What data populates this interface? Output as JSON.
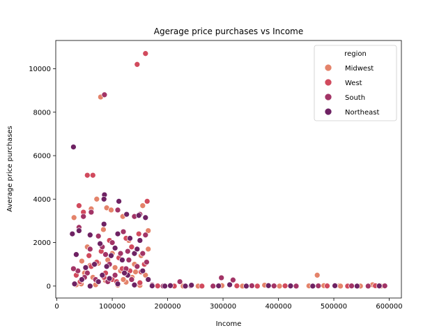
{
  "chart_data": {
    "type": "scatter",
    "title": "Agerage price purchases vs Income",
    "xlabel": "Income",
    "ylabel": "Average price purchases",
    "xlim": [
      -2000,
      622000
    ],
    "ylim": [
      -550,
      11300
    ],
    "xticks": [
      0,
      100000,
      200000,
      300000,
      400000,
      500000,
      600000
    ],
    "xtick_labels": [
      "0",
      "100000",
      "200000",
      "300000",
      "400000",
      "500000",
      "600000"
    ],
    "yticks": [
      0,
      2000,
      4000,
      6000,
      8000,
      10000
    ],
    "ytick_labels": [
      "0",
      "2000",
      "4000",
      "6000",
      "8000",
      "10000"
    ],
    "grid": false,
    "legend": {
      "title": "region",
      "placement": "top-right",
      "entries": [
        "Midwest",
        "West",
        "South",
        "Northeast"
      ]
    },
    "series": [
      {
        "name": "Midwest",
        "color": "#e4836a",
        "points": [
          [
            79000,
            8700
          ],
          [
            31000,
            3150
          ],
          [
            55000,
            1800
          ],
          [
            62000,
            3550
          ],
          [
            72000,
            4000
          ],
          [
            90000,
            3600
          ],
          [
            98000,
            3500
          ],
          [
            84000,
            2600
          ],
          [
            119000,
            3200
          ],
          [
            130000,
            2100
          ],
          [
            155000,
            3700
          ],
          [
            165000,
            2550
          ],
          [
            165000,
            1700
          ],
          [
            152000,
            1400
          ],
          [
            115000,
            700
          ],
          [
            45000,
            1150
          ],
          [
            60000,
            950
          ],
          [
            75000,
            1050
          ],
          [
            100000,
            1500
          ],
          [
            140000,
            1000
          ],
          [
            35000,
            60
          ],
          [
            44000,
            100
          ],
          [
            70000,
            60
          ],
          [
            88000,
            250
          ],
          [
            110000,
            40
          ],
          [
            125000,
            180
          ],
          [
            150000,
            30
          ],
          [
            160000,
            500
          ],
          [
            120000,
            300
          ],
          [
            65000,
            400
          ],
          [
            50000,
            600
          ],
          [
            105000,
            850
          ],
          [
            92000,
            1200
          ],
          [
            142000,
            650
          ],
          [
            136000,
            400
          ],
          [
            470000,
            500
          ],
          [
            455000,
            10
          ],
          [
            482000,
            20
          ],
          [
            510000,
            15
          ],
          [
            570000,
            60
          ],
          [
            375000,
            40
          ],
          [
            255000,
            0
          ],
          [
            298000,
            20
          ],
          [
            402000,
            0
          ],
          [
            512000,
            0
          ],
          [
            548000,
            0
          ],
          [
            585000,
            0
          ],
          [
            335000,
            0
          ],
          [
            205000,
            10
          ],
          [
            228000,
            0
          ]
        ]
      },
      {
        "name": "West",
        "color": "#d14a5d",
        "points": [
          [
            145000,
            10200
          ],
          [
            160000,
            10700
          ],
          [
            55000,
            5100
          ],
          [
            65000,
            5100
          ],
          [
            40000,
            3700
          ],
          [
            163000,
            3900
          ],
          [
            48000,
            3400
          ],
          [
            95000,
            2100
          ],
          [
            125000,
            2200
          ],
          [
            148000,
            2400
          ],
          [
            80000,
            1600
          ],
          [
            112000,
            1300
          ],
          [
            62000,
            900
          ],
          [
            35000,
            500
          ],
          [
            72000,
            1100
          ],
          [
            132000,
            700
          ],
          [
            100000,
            300
          ],
          [
            158000,
            1000
          ],
          [
            150000,
            150
          ],
          [
            85000,
            400
          ],
          [
            42000,
            200
          ],
          [
            118000,
            800
          ],
          [
            135000,
            1800
          ],
          [
            108000,
            200
          ],
          [
            58000,
            1400
          ],
          [
            88000,
            600
          ],
          [
            152000,
            650
          ],
          [
            325000,
            10
          ],
          [
            362000,
            0
          ],
          [
            412000,
            10
          ],
          [
            488000,
            5
          ],
          [
            525000,
            0
          ],
          [
            575000,
            15
          ],
          [
            262000,
            0
          ],
          [
            182000,
            5
          ],
          [
            212000,
            0
          ]
        ]
      },
      {
        "name": "South",
        "color": "#a23466",
        "points": [
          [
            86000,
            8800
          ],
          [
            48000,
            3200
          ],
          [
            62000,
            3400
          ],
          [
            110000,
            3500
          ],
          [
            140000,
            3200
          ],
          [
            120000,
            2500
          ],
          [
            150000,
            3300
          ],
          [
            100000,
            2000
          ],
          [
            60000,
            1700
          ],
          [
            128000,
            1600
          ],
          [
            160000,
            2350
          ],
          [
            88000,
            1450
          ],
          [
            40000,
            2700
          ],
          [
            75000,
            2300
          ],
          [
            130000,
            1200
          ],
          [
            95000,
            1000
          ],
          [
            55000,
            600
          ],
          [
            145000,
            900
          ],
          [
            105000,
            500
          ],
          [
            70000,
            300
          ],
          [
            38000,
            700
          ],
          [
            115000,
            1500
          ],
          [
            155000,
            1500
          ],
          [
            82000,
            1800
          ],
          [
            135000,
            300
          ],
          [
            92000,
            200
          ],
          [
            50000,
            400
          ],
          [
            125000,
            800
          ],
          [
            162000,
            1100
          ],
          [
            30000,
            800
          ],
          [
            297000,
            380
          ],
          [
            318000,
            280
          ],
          [
            172000,
            50
          ],
          [
            222000,
            200
          ],
          [
            242000,
            10
          ],
          [
            282000,
            0
          ],
          [
            352000,
            15
          ],
          [
            392000,
            5
          ],
          [
            432000,
            0
          ],
          [
            472000,
            10
          ],
          [
            532000,
            5
          ],
          [
            562000,
            0
          ],
          [
            592000,
            10
          ],
          [
            192000,
            0
          ]
        ]
      },
      {
        "name": "Northeast",
        "color": "#6e2263",
        "points": [
          [
            30000,
            6400
          ],
          [
            86000,
            4200
          ],
          [
            85000,
            4000
          ],
          [
            112000,
            3900
          ],
          [
            28000,
            2400
          ],
          [
            85000,
            2850
          ],
          [
            160000,
            3150
          ],
          [
            126000,
            3300
          ],
          [
            148000,
            3250
          ],
          [
            40000,
            2550
          ],
          [
            60000,
            2350
          ],
          [
            110000,
            2400
          ],
          [
            132000,
            2200
          ],
          [
            150000,
            2100
          ],
          [
            78000,
            1950
          ],
          [
            105000,
            1750
          ],
          [
            140000,
            1500
          ],
          [
            35000,
            1450
          ],
          [
            98000,
            1400
          ],
          [
            118000,
            1200
          ],
          [
            68000,
            1000
          ],
          [
            52000,
            850
          ],
          [
            90000,
            900
          ],
          [
            155000,
            700
          ],
          [
            128000,
            500
          ],
          [
            45000,
            300
          ],
          [
            75000,
            200
          ],
          [
            110000,
            100
          ],
          [
            140000,
            50
          ],
          [
            60000,
            0
          ],
          [
            95000,
            350
          ],
          [
            32000,
            100
          ],
          [
            165000,
            300
          ],
          [
            145000,
            1700
          ],
          [
            122000,
            600
          ],
          [
            82000,
            500
          ],
          [
            205000,
            20
          ],
          [
            243000,
            40
          ],
          [
            292000,
            10
          ],
          [
            342000,
            0
          ],
          [
            382000,
            20
          ],
          [
            422000,
            5
          ],
          [
            462000,
            0
          ],
          [
            502000,
            15
          ],
          [
            542000,
            0
          ],
          [
            582000,
            5
          ],
          [
            232000,
            0
          ],
          [
            312000,
            60
          ],
          [
            172000,
            10
          ],
          [
            195000,
            0
          ]
        ]
      }
    ]
  }
}
